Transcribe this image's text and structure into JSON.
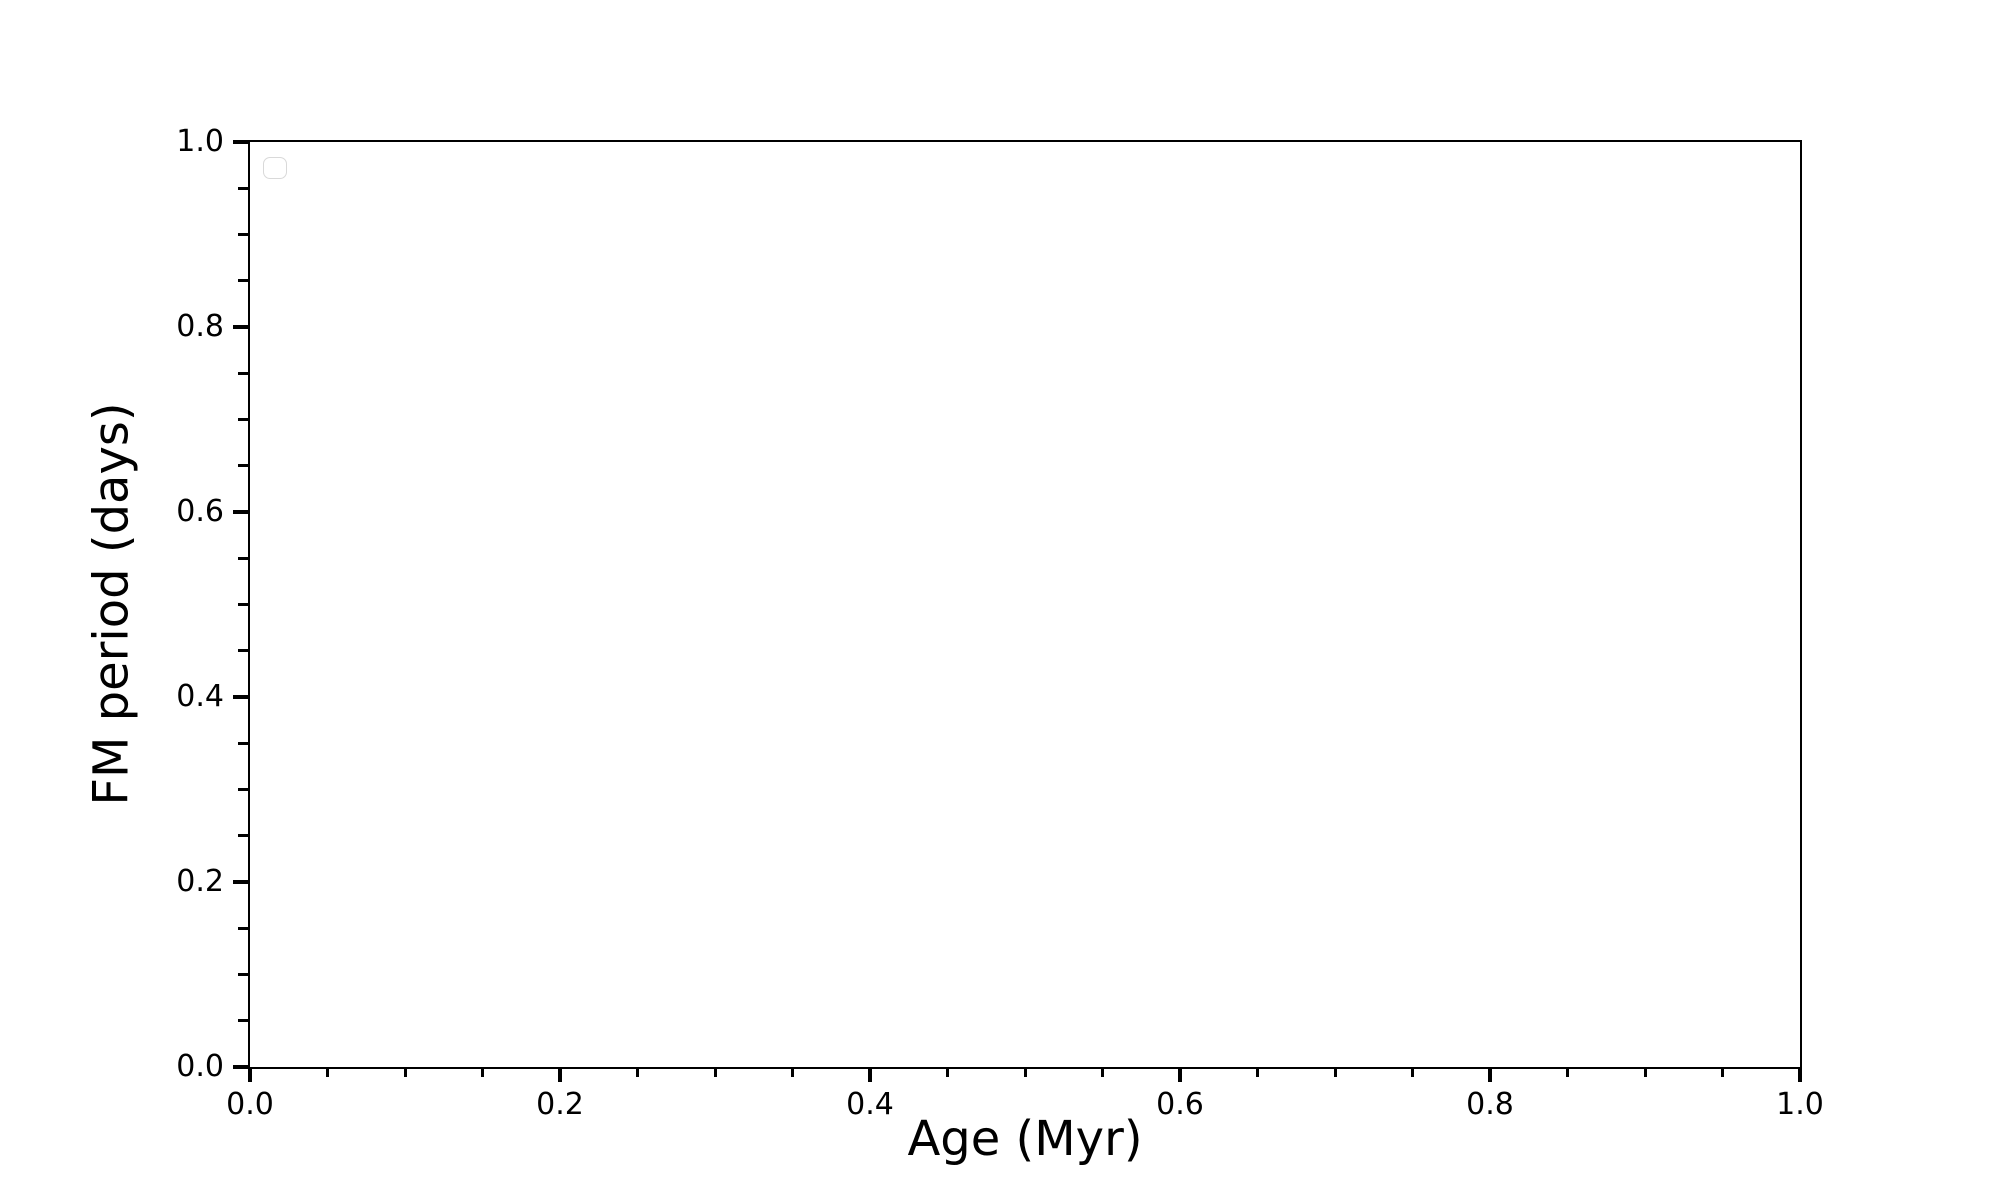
{
  "figure": {
    "background": "#ffffff"
  },
  "chart_data": {
    "type": "scatter",
    "title": "",
    "xlabel": "Age (Myr)",
    "ylabel": "FM period (days)",
    "xlim": [
      0.0,
      1.0
    ],
    "ylim": [
      0.0,
      1.0
    ],
    "xticks": {
      "values": [
        0.0,
        0.2,
        0.4,
        0.6,
        0.8,
        1.0
      ],
      "labels": [
        "0.0",
        "0.2",
        "0.4",
        "0.6",
        "0.8",
        "1.0"
      ]
    },
    "yticks": {
      "values": [
        0.0,
        0.2,
        0.4,
        0.6,
        0.8,
        1.0
      ],
      "labels": [
        "0.0",
        "0.2",
        "0.4",
        "0.6",
        "0.8",
        "1.0"
      ]
    },
    "minor_tick_interval": 0.05,
    "grid": false,
    "series": [],
    "legend": {
      "visible": true,
      "entries": [],
      "position": "upper-left"
    }
  },
  "colors": {
    "axis": "#000000",
    "tick": "#000000",
    "text": "#000000",
    "legend_border": "#d9d9d9",
    "background": "#ffffff"
  }
}
